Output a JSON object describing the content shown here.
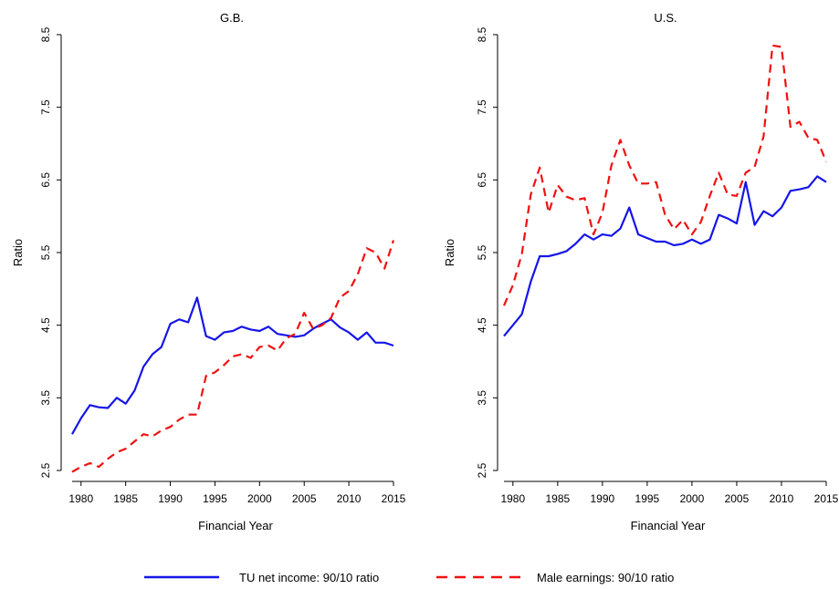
{
  "chart_data": [
    {
      "type": "line",
      "title": "G.B.",
      "xlabel": "Financial Year",
      "ylabel": "Ratio",
      "xlim": [
        1979,
        2015
      ],
      "ylim": [
        2.5,
        8.5
      ],
      "x_ticks": [
        1980,
        1985,
        1990,
        1995,
        2000,
        2005,
        2010,
        2015
      ],
      "y_ticks": [
        2.5,
        3.5,
        4.5,
        5.5,
        6.5,
        7.5,
        8.5
      ],
      "grid": false,
      "x": [
        1979,
        1980,
        1981,
        1982,
        1983,
        1984,
        1985,
        1986,
        1987,
        1988,
        1989,
        1990,
        1991,
        1992,
        1993,
        1994,
        1995,
        1996,
        1997,
        1998,
        1999,
        2000,
        2001,
        2002,
        2003,
        2004,
        2005,
        2006,
        2007,
        2008,
        2009,
        2010,
        2011,
        2012,
        2013,
        2014,
        2015
      ],
      "series": [
        {
          "name": "TU net income: 90/10 ratio",
          "color": "#1515e8",
          "dash": "solid",
          "values": [
            3.0,
            3.22,
            3.4,
            3.37,
            3.36,
            3.5,
            3.42,
            3.6,
            3.93,
            4.1,
            4.2,
            4.52,
            4.58,
            4.54,
            4.88,
            4.35,
            4.3,
            4.4,
            4.42,
            4.48,
            4.44,
            4.42,
            4.48,
            4.38,
            4.36,
            4.34,
            4.36,
            4.45,
            4.52,
            4.58,
            4.47,
            4.4,
            4.3,
            4.4,
            4.26,
            4.26,
            4.22
          ]
        },
        {
          "name": "Male earnings: 90/10 ratio",
          "color": "#f01010",
          "dash": "dashed",
          "values": [
            2.48,
            2.55,
            2.6,
            2.55,
            2.66,
            2.75,
            2.8,
            2.9,
            3.0,
            2.97,
            3.05,
            3.1,
            3.2,
            3.27,
            3.27,
            3.8,
            3.85,
            3.95,
            4.07,
            4.1,
            4.05,
            4.2,
            4.22,
            4.15,
            4.32,
            4.38,
            4.67,
            4.45,
            4.5,
            4.6,
            4.88,
            4.97,
            5.2,
            5.56,
            5.5,
            5.28,
            5.67
          ]
        }
      ]
    },
    {
      "type": "line",
      "title": "U.S.",
      "xlabel": "Financial Year",
      "ylabel": "Ratio",
      "xlim": [
        1979,
        2015
      ],
      "ylim": [
        2.5,
        8.5
      ],
      "x_ticks": [
        1980,
        1985,
        1990,
        1995,
        2000,
        2005,
        2010,
        2015
      ],
      "y_ticks": [
        2.5,
        3.5,
        4.5,
        5.5,
        6.5,
        7.5,
        8.5
      ],
      "grid": false,
      "x": [
        1979,
        1980,
        1981,
        1982,
        1983,
        1984,
        1985,
        1986,
        1987,
        1988,
        1989,
        1990,
        1991,
        1992,
        1993,
        1994,
        1995,
        1996,
        1997,
        1998,
        1999,
        2000,
        2001,
        2002,
        2003,
        2004,
        2005,
        2006,
        2007,
        2008,
        2009,
        2010,
        2011,
        2012,
        2013,
        2014,
        2015
      ],
      "series": [
        {
          "name": "TU net income: 90/10 ratio",
          "color": "#1515e8",
          "dash": "solid",
          "values": [
            4.35,
            4.5,
            4.65,
            5.1,
            5.45,
            5.45,
            5.48,
            5.52,
            5.62,
            5.75,
            5.68,
            5.75,
            5.73,
            5.83,
            6.12,
            5.75,
            5.7,
            5.65,
            5.65,
            5.6,
            5.62,
            5.68,
            5.62,
            5.68,
            6.02,
            5.97,
            5.9,
            6.47,
            5.88,
            6.07,
            6.0,
            6.12,
            6.35,
            6.37,
            6.4,
            6.55,
            6.47
          ]
        },
        {
          "name": "Male earnings: 90/10 ratio",
          "color": "#f01010",
          "dash": "dashed",
          "values": [
            4.77,
            5.05,
            5.48,
            6.3,
            6.67,
            6.05,
            6.43,
            6.27,
            6.22,
            6.25,
            5.75,
            6.05,
            6.7,
            7.05,
            6.7,
            6.45,
            6.45,
            6.47,
            6.02,
            5.82,
            5.95,
            5.75,
            5.92,
            6.28,
            6.6,
            6.3,
            6.28,
            6.6,
            6.68,
            7.1,
            8.35,
            8.33,
            7.23,
            7.3,
            7.08,
            7.05,
            6.75
          ]
        }
      ]
    }
  ],
  "legend": {
    "placement": "bottom",
    "items": [
      {
        "label": "TU net income: 90/10 ratio",
        "color": "#1515e8",
        "dash": "solid"
      },
      {
        "label": "Male earnings: 90/10 ratio",
        "color": "#f01010",
        "dash": "dashed"
      }
    ]
  }
}
